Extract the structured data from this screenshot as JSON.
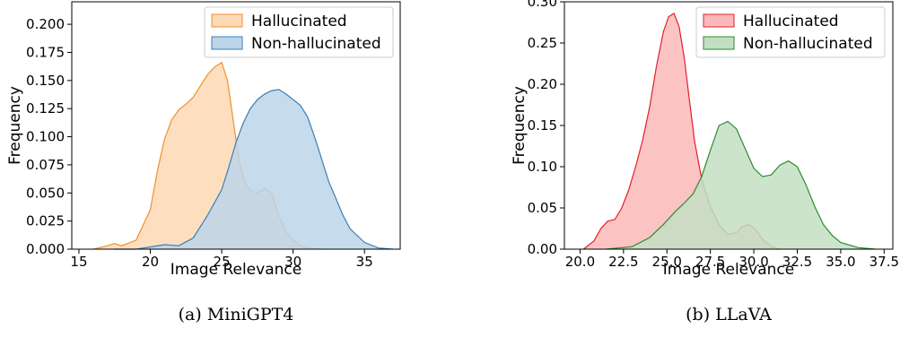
{
  "chart_data": [
    {
      "type": "area",
      "caption": "(a) MiniGPT4",
      "xlabel": "Image Relevance",
      "ylabel": "Frequency",
      "xlim": [
        14.5,
        37.5
      ],
      "ylim": [
        0.0,
        0.22
      ],
      "x_ticks": [
        15,
        20,
        25,
        30,
        35
      ],
      "x_tick_labels": [
        "15",
        "20",
        "25",
        "30",
        "35"
      ],
      "y_ticks": [
        0.0,
        0.025,
        0.05,
        0.075,
        0.1,
        0.125,
        0.15,
        0.175,
        0.2
      ],
      "y_tick_labels": [
        "0.000",
        "0.025",
        "0.050",
        "0.075",
        "0.100",
        "0.125",
        "0.150",
        "0.175",
        "0.200"
      ],
      "legend_position": "top-right",
      "grid": false,
      "series": [
        {
          "name": "Hallucinated",
          "fill": "#fdd9b5",
          "stroke": "#f28e2b",
          "x": [
            16.0,
            17.0,
            17.5,
            18.0,
            19.0,
            20.0,
            20.5,
            21.0,
            21.5,
            22.0,
            22.5,
            23.0,
            23.5,
            24.0,
            24.5,
            25.0,
            25.4,
            25.8,
            26.2,
            26.6,
            27.0,
            27.5,
            28.0,
            28.5,
            29.0,
            29.5,
            30.0,
            30.5,
            31.0,
            32.0
          ],
          "y": [
            0.0,
            0.003,
            0.005,
            0.003,
            0.008,
            0.035,
            0.07,
            0.098,
            0.115,
            0.124,
            0.129,
            0.135,
            0.145,
            0.155,
            0.162,
            0.166,
            0.15,
            0.115,
            0.08,
            0.06,
            0.052,
            0.05,
            0.054,
            0.05,
            0.03,
            0.016,
            0.008,
            0.003,
            0.001,
            0.0
          ]
        },
        {
          "name": "Non-hallucinated",
          "fill": "#bcd5e8",
          "stroke": "#3a7fb8",
          "x": [
            17.5,
            19.0,
            20.0,
            21.0,
            22.0,
            23.0,
            24.0,
            25.0,
            25.5,
            26.0,
            26.5,
            27.0,
            27.5,
            28.0,
            28.5,
            29.0,
            29.5,
            30.0,
            30.5,
            31.0,
            31.5,
            32.0,
            32.5,
            33.0,
            33.5,
            34.0,
            35.0,
            36.0,
            37.0
          ],
          "y": [
            0.0,
            0.0,
            0.002,
            0.004,
            0.003,
            0.01,
            0.03,
            0.053,
            0.073,
            0.095,
            0.112,
            0.125,
            0.133,
            0.138,
            0.141,
            0.142,
            0.138,
            0.133,
            0.128,
            0.118,
            0.1,
            0.08,
            0.06,
            0.045,
            0.03,
            0.018,
            0.006,
            0.001,
            0.0
          ]
        }
      ]
    },
    {
      "type": "area",
      "caption": "(b) LLaVA",
      "xlabel": "Image Relevance",
      "ylabel": "Frequency",
      "xlim": [
        19.1,
        38.0
      ],
      "ylim": [
        0.0,
        0.3
      ],
      "x_ticks": [
        20.0,
        22.5,
        25.0,
        27.5,
        30.0,
        32.5,
        35.0,
        37.5
      ],
      "x_tick_labels": [
        "20.0",
        "22.5",
        "25.0",
        "27.5",
        "30.0",
        "32.5",
        "35.0",
        "37.5"
      ],
      "y_ticks": [
        0.0,
        0.05,
        0.1,
        0.15,
        0.2,
        0.25,
        0.3
      ],
      "y_tick_labels": [
        "0.00",
        "0.05",
        "0.10",
        "0.15",
        "0.20",
        "0.25",
        "0.30"
      ],
      "legend_position": "top-right",
      "grid": false,
      "series": [
        {
          "name": "Hallucinated",
          "fill": "#fbb9b9",
          "stroke": "#e0202a",
          "x": [
            20.2,
            20.8,
            21.2,
            21.6,
            22.0,
            22.4,
            22.8,
            23.2,
            23.6,
            24.0,
            24.4,
            24.8,
            25.1,
            25.4,
            25.7,
            26.0,
            26.3,
            26.6,
            27.0,
            27.5,
            28.0,
            28.5,
            29.0,
            29.3,
            29.7,
            30.1,
            30.5,
            31.0,
            31.5
          ],
          "y": [
            0.0,
            0.01,
            0.025,
            0.034,
            0.036,
            0.05,
            0.072,
            0.1,
            0.132,
            0.172,
            0.222,
            0.264,
            0.282,
            0.286,
            0.27,
            0.232,
            0.18,
            0.13,
            0.085,
            0.052,
            0.03,
            0.018,
            0.02,
            0.027,
            0.03,
            0.024,
            0.012,
            0.003,
            0.0
          ]
        },
        {
          "name": "Non-hallucinated",
          "fill": "#c3dfc3",
          "stroke": "#2e8b2e",
          "x": [
            21.5,
            23.0,
            24.0,
            24.8,
            25.5,
            26.0,
            26.5,
            27.0,
            27.5,
            28.0,
            28.5,
            29.0,
            29.5,
            30.0,
            30.5,
            31.0,
            31.5,
            32.0,
            32.5,
            33.0,
            33.5,
            34.0,
            34.5,
            35.0,
            36.0,
            37.0
          ],
          "y": [
            0.0,
            0.003,
            0.014,
            0.03,
            0.046,
            0.056,
            0.067,
            0.088,
            0.12,
            0.15,
            0.155,
            0.146,
            0.122,
            0.098,
            0.088,
            0.09,
            0.102,
            0.107,
            0.1,
            0.078,
            0.052,
            0.03,
            0.017,
            0.008,
            0.002,
            0.0
          ]
        }
      ]
    }
  ]
}
